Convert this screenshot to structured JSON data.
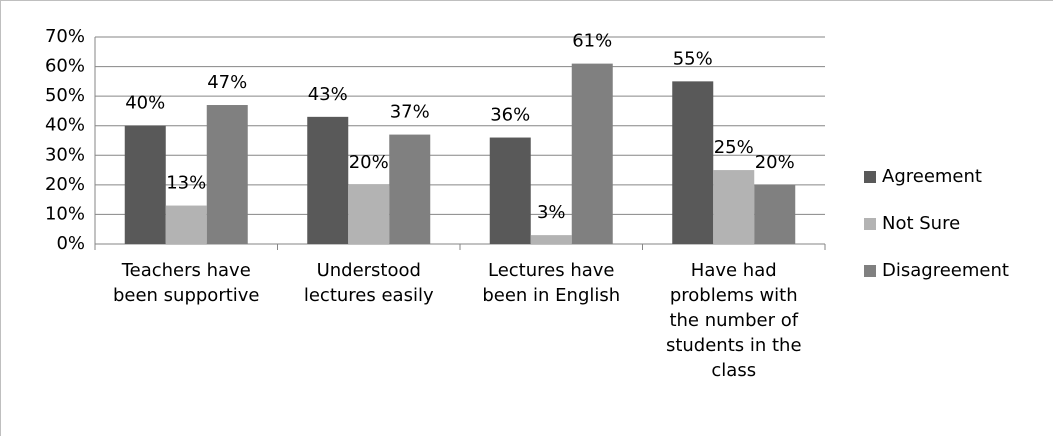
{
  "chart_data": {
    "type": "bar",
    "categories": [
      "Teachers have been supportive",
      "Understood lectures easily",
      "Lectures have been in English",
      "Have had problems with the number of students in the class"
    ],
    "series": [
      {
        "name": "Agreement",
        "color": "#595959",
        "values": [
          40,
          43,
          36,
          55
        ],
        "value_labels": [
          "40%",
          "43%",
          "36%",
          "55%"
        ]
      },
      {
        "name": "Not Sure",
        "color": "#b3b3b3",
        "values": [
          13,
          20,
          3,
          25
        ],
        "value_labels": [
          "13%",
          "20%",
          "3%",
          "25%"
        ]
      },
      {
        "name": "Disagreement",
        "color": "#808080",
        "values": [
          47,
          37,
          61,
          20
        ],
        "value_labels": [
          "47%",
          "37%",
          "61%",
          "20%"
        ]
      }
    ],
    "ylim": [
      0,
      70
    ],
    "yticks": [
      {
        "value": 0,
        "label": "0%"
      },
      {
        "value": 10,
        "label": "10%"
      },
      {
        "value": 20,
        "label": "20%"
      },
      {
        "value": 30,
        "label": "30%"
      },
      {
        "value": 40,
        "label": "40%"
      },
      {
        "value": 50,
        "label": "50%"
      },
      {
        "value": 60,
        "label": "60%"
      },
      {
        "value": 70,
        "label": "70%"
      }
    ],
    "grid": true,
    "legend": "right"
  }
}
